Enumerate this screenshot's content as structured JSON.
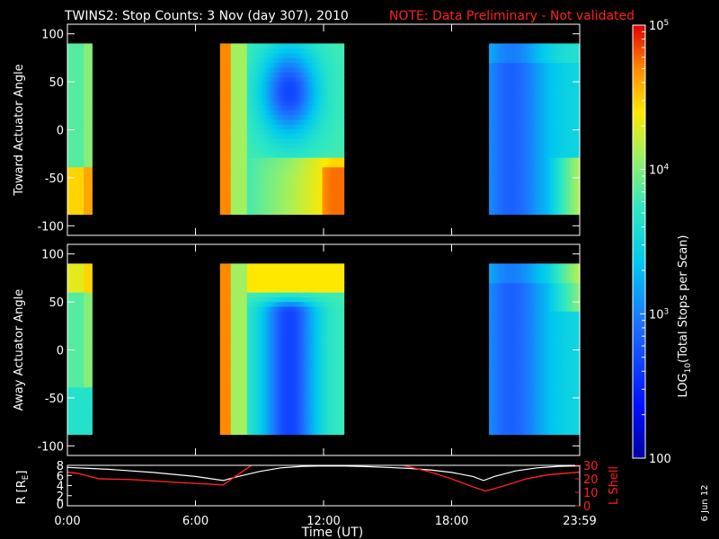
{
  "header": {
    "title": "TWINS2: Stop Counts:  3 Nov (day 307), 2010",
    "note": "NOTE: Data Preliminary - Not validated"
  },
  "footer": {
    "xlabel": "Time (UT)",
    "date_stamp": "6 Jun 12"
  },
  "colors": {
    "background": "#000000",
    "axis": "#ffffff",
    "note": "#ff2020",
    "r_line": "#ffffff",
    "l_line": "#ff2020"
  },
  "colorbar": {
    "label": "LOG10(Total Stops per Scan)",
    "label_main": "LOG",
    "label_sub": "10",
    "label_rest": "(Total Stops per Scan)",
    "ticks": [
      {
        "value": 100,
        "label": "100"
      },
      {
        "value": 1000,
        "label": "10",
        "sup": "3"
      },
      {
        "value": 10000,
        "label": "10",
        "sup": "4"
      },
      {
        "value": 100000,
        "label": "10",
        "sup": "5"
      }
    ],
    "range": [
      100,
      100000
    ],
    "scale": "log"
  },
  "chart_data": [
    {
      "type": "heatmap",
      "panel": "top",
      "ylabel": "Toward Actuator Angle",
      "xlim": [
        0,
        24
      ],
      "ylim": [
        -110,
        110
      ],
      "yticks": [
        100,
        50,
        0,
        -50,
        -100
      ],
      "ytick_labels": [
        "100",
        "50",
        "0",
        "-50",
        "-100"
      ],
      "xticks": [
        0,
        6,
        12,
        18,
        24
      ],
      "xtick_labels": [
        "0:00",
        "6:00",
        "12:00",
        "18:00",
        "23:59"
      ],
      "scale": "log",
      "data_intervals": [
        {
          "start": 0.0,
          "end": 1.15
        },
        {
          "start": 7.15,
          "end": 12.95
        },
        {
          "start": 19.75,
          "end": 24.0
        }
      ],
      "angle_range": [
        -88,
        90
      ]
    },
    {
      "type": "heatmap",
      "panel": "middle",
      "ylabel": "Away Actuator Angle",
      "xlim": [
        0,
        24
      ],
      "ylim": [
        -110,
        110
      ],
      "yticks": [
        100,
        50,
        0,
        -50,
        -100
      ],
      "ytick_labels": [
        "100",
        "50",
        "0",
        "-50",
        "-100"
      ],
      "xticks": [
        0,
        6,
        12,
        18,
        24
      ],
      "xtick_labels": [
        "0:00",
        "6:00",
        "12:00",
        "18:00",
        "23:59"
      ],
      "scale": "log",
      "data_intervals": [
        {
          "start": 0.0,
          "end": 1.15
        },
        {
          "start": 7.15,
          "end": 12.95
        },
        {
          "start": 19.75,
          "end": 24.0
        }
      ],
      "angle_range": [
        -88,
        90
      ]
    },
    {
      "type": "line",
      "panel": "orbit",
      "ylabel_left": "R [RE]",
      "ylabel_left_main": "R [R",
      "ylabel_left_sub": "E",
      "ylabel_left_end": "]",
      "ylabel_right": "L Shell",
      "xlim": [
        0,
        24
      ],
      "ylim_left": [
        0,
        8
      ],
      "ylim_right": [
        0,
        30
      ],
      "yticks_left": [
        2,
        4,
        6,
        8
      ],
      "yticks_right": [
        0,
        10,
        20,
        30
      ],
      "xticks": [
        0,
        6,
        12,
        18,
        24
      ],
      "xtick_labels": [
        "0:00",
        "6:00",
        "12:00",
        "18:00",
        "23:59"
      ],
      "series": [
        {
          "name": "R",
          "axis": "left",
          "color": "#ffffff",
          "x": [
            0,
            1,
            2,
            4,
            6,
            7.3,
            8,
            9,
            10,
            11,
            12,
            13,
            14,
            15,
            16,
            17,
            18,
            19,
            19.5,
            20,
            21,
            22,
            23,
            24
          ],
          "y": [
            7.6,
            7.4,
            7.2,
            6.6,
            5.8,
            5.0,
            5.8,
            6.8,
            7.5,
            7.8,
            7.9,
            7.85,
            7.75,
            7.6,
            7.4,
            7.1,
            6.6,
            5.8,
            5.0,
            5.8,
            6.9,
            7.5,
            7.8,
            7.9
          ]
        },
        {
          "name": "L Shell",
          "axis": "right",
          "color": "#ff2020",
          "segments": [
            {
              "x": [
                0,
                0.5,
                1.5,
                3,
                5,
                7.3,
                8.8
              ],
              "y": [
                25,
                24,
                20,
                19.5,
                17.5,
                15.5,
                32
              ]
            },
            {
              "x": [
                15.2,
                16,
                17,
                18,
                19,
                19.6,
                20.5,
                21.5,
                22.5,
                24
              ],
              "y": [
                32,
                29,
                25,
                20,
                14,
                11,
                15,
                20,
                23,
                25
              ]
            }
          ]
        }
      ]
    }
  ]
}
